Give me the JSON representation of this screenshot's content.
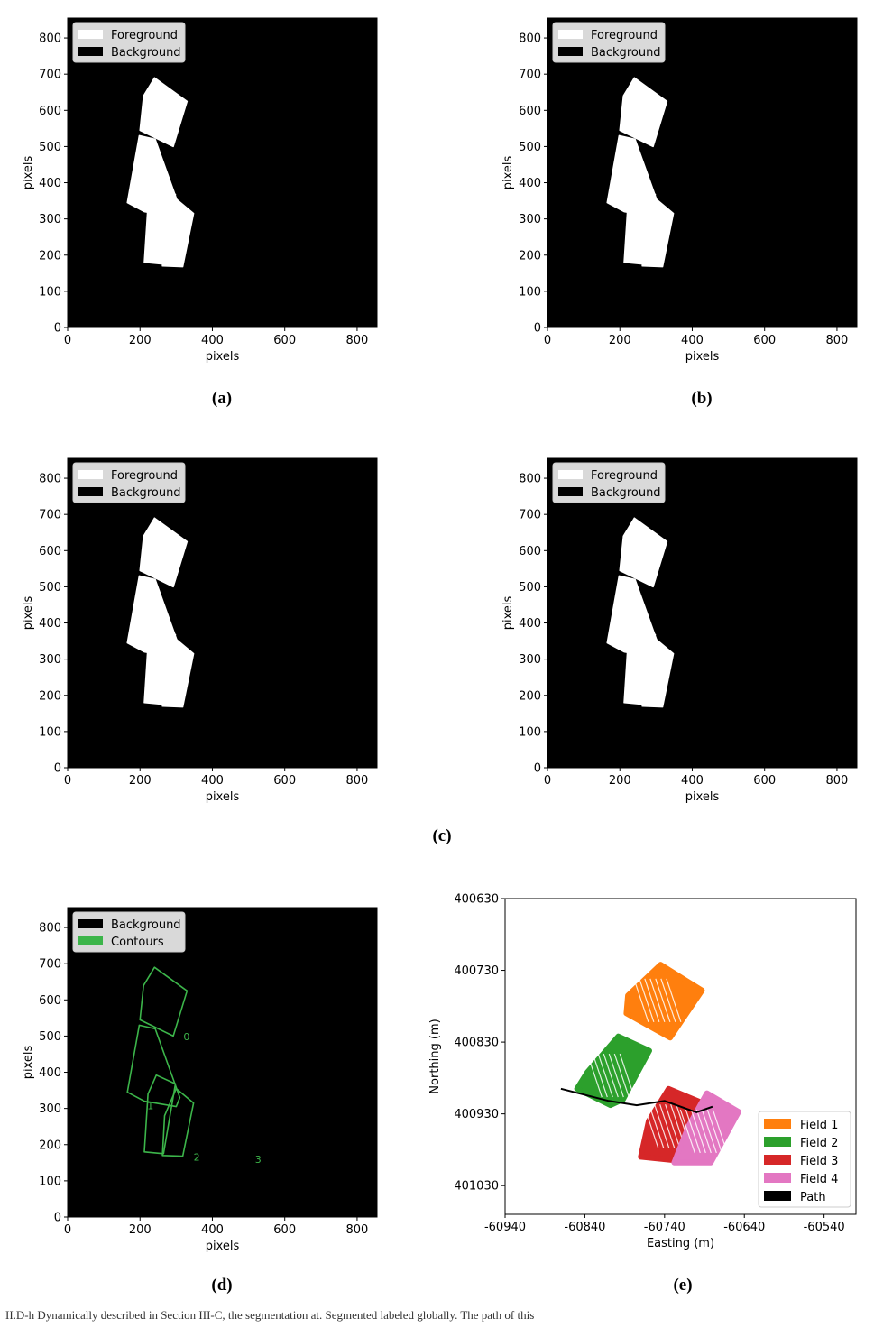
{
  "figure": {
    "captions": {
      "a": "(a)",
      "b": "(b)",
      "c": "(c)",
      "d": "(d)",
      "e": "(e)"
    },
    "bottom_caption": "II.D-h Dynamically described in Section III-C, the segmentation at. Segmented labeled globally. The path of this"
  },
  "chart_data": [
    {
      "id": "a",
      "type": "heatmap",
      "xlabel": "pixels",
      "ylabel": "pixels",
      "xlim": [
        0,
        855
      ],
      "ylim": [
        855,
        0
      ],
      "xticks": [
        0,
        200,
        400,
        600,
        800
      ],
      "yticks": [
        0,
        100,
        200,
        300,
        400,
        500,
        600,
        700,
        800
      ],
      "legend": [
        {
          "label": "Foreground",
          "color": "#ffffff"
        },
        {
          "label": "Background",
          "color": "#000000"
        }
      ],
      "legend_position": "top-left",
      "fields": [
        [
          [
            212,
            320
          ],
          [
            300,
            305
          ],
          [
            310,
            330
          ],
          [
            242,
            520
          ],
          [
            198,
            530
          ],
          [
            165,
            345
          ]
        ],
        [
          [
            200,
            545
          ],
          [
            292,
            500
          ],
          [
            330,
            625
          ],
          [
            240,
            690
          ],
          [
            210,
            640
          ]
        ],
        [
          [
            212,
            180
          ],
          [
            265,
            175
          ],
          [
            298,
            368
          ],
          [
            245,
            392
          ],
          [
            222,
            340
          ]
        ],
        [
          [
            262,
            170
          ],
          [
            318,
            168
          ],
          [
            348,
            315
          ],
          [
            300,
            355
          ],
          [
            268,
            280
          ]
        ]
      ]
    },
    {
      "id": "b",
      "type": "heatmap",
      "xlabel": "pixels",
      "ylabel": "pixels",
      "xlim": [
        0,
        855
      ],
      "ylim": [
        855,
        0
      ],
      "xticks": [
        0,
        200,
        400,
        600,
        800
      ],
      "yticks": [
        0,
        100,
        200,
        300,
        400,
        500,
        600,
        700,
        800
      ],
      "legend": [
        {
          "label": "Foreground",
          "color": "#ffffff"
        },
        {
          "label": "Background",
          "color": "#000000"
        }
      ],
      "legend_position": "top-left",
      "fields": [
        [
          [
            212,
            320
          ],
          [
            300,
            305
          ],
          [
            310,
            330
          ],
          [
            242,
            520
          ],
          [
            198,
            530
          ],
          [
            165,
            345
          ]
        ],
        [
          [
            200,
            545
          ],
          [
            292,
            500
          ],
          [
            330,
            625
          ],
          [
            240,
            690
          ],
          [
            210,
            640
          ]
        ],
        [
          [
            212,
            180
          ],
          [
            265,
            175
          ],
          [
            298,
            368
          ],
          [
            245,
            392
          ],
          [
            222,
            340
          ]
        ],
        [
          [
            262,
            170
          ],
          [
            318,
            168
          ],
          [
            348,
            315
          ],
          [
            300,
            355
          ],
          [
            268,
            280
          ]
        ]
      ]
    },
    {
      "id": "c1",
      "type": "heatmap",
      "xlabel": "pixels",
      "ylabel": "pixels",
      "xlim": [
        0,
        855
      ],
      "ylim": [
        855,
        0
      ],
      "xticks": [
        0,
        200,
        400,
        600,
        800
      ],
      "yticks": [
        0,
        100,
        200,
        300,
        400,
        500,
        600,
        700,
        800
      ],
      "legend": [
        {
          "label": "Foreground",
          "color": "#ffffff"
        },
        {
          "label": "Background",
          "color": "#000000"
        }
      ],
      "legend_position": "top-left",
      "fields": [
        [
          [
            212,
            320
          ],
          [
            300,
            305
          ],
          [
            310,
            330
          ],
          [
            242,
            520
          ],
          [
            198,
            530
          ],
          [
            165,
            345
          ]
        ],
        [
          [
            200,
            545
          ],
          [
            292,
            500
          ],
          [
            330,
            625
          ],
          [
            240,
            690
          ],
          [
            210,
            640
          ]
        ],
        [
          [
            212,
            180
          ],
          [
            265,
            175
          ],
          [
            298,
            368
          ],
          [
            245,
            392
          ],
          [
            222,
            340
          ]
        ],
        [
          [
            262,
            170
          ],
          [
            318,
            168
          ],
          [
            348,
            315
          ],
          [
            300,
            355
          ],
          [
            268,
            280
          ]
        ]
      ]
    },
    {
      "id": "c2",
      "type": "heatmap",
      "xlabel": "pixels",
      "ylabel": "pixels",
      "xlim": [
        0,
        855
      ],
      "ylim": [
        855,
        0
      ],
      "xticks": [
        0,
        200,
        400,
        600,
        800
      ],
      "yticks": [
        0,
        100,
        200,
        300,
        400,
        500,
        600,
        700,
        800
      ],
      "legend": [
        {
          "label": "Foreground",
          "color": "#ffffff"
        },
        {
          "label": "Background",
          "color": "#000000"
        }
      ],
      "legend_position": "top-left",
      "fields": [
        [
          [
            212,
            320
          ],
          [
            300,
            305
          ],
          [
            310,
            330
          ],
          [
            242,
            520
          ],
          [
            198,
            530
          ],
          [
            165,
            345
          ]
        ],
        [
          [
            200,
            545
          ],
          [
            292,
            500
          ],
          [
            330,
            625
          ],
          [
            240,
            690
          ],
          [
            210,
            640
          ]
        ],
        [
          [
            212,
            180
          ],
          [
            265,
            175
          ],
          [
            298,
            368
          ],
          [
            245,
            392
          ],
          [
            222,
            340
          ]
        ],
        [
          [
            262,
            170
          ],
          [
            318,
            168
          ],
          [
            348,
            315
          ],
          [
            300,
            355
          ],
          [
            268,
            280
          ]
        ]
      ]
    },
    {
      "id": "d",
      "type": "heatmap",
      "xlabel": "pixels",
      "ylabel": "pixels",
      "xlim": [
        0,
        855
      ],
      "ylim": [
        855,
        0
      ],
      "xticks": [
        0,
        200,
        400,
        600,
        800
      ],
      "yticks": [
        0,
        100,
        200,
        300,
        400,
        500,
        600,
        700,
        800
      ],
      "legend": [
        {
          "label": "Background",
          "color": "#000000"
        },
        {
          "label": "Contours",
          "color": "#3cb54a"
        }
      ],
      "legend_position": "top-left",
      "contour_color": "#3cb54a",
      "fields": [
        [
          [
            200,
            545
          ],
          [
            292,
            500
          ],
          [
            330,
            625
          ],
          [
            240,
            690
          ],
          [
            210,
            640
          ]
        ],
        [
          [
            212,
            320
          ],
          [
            300,
            305
          ],
          [
            310,
            330
          ],
          [
            242,
            520
          ],
          [
            198,
            530
          ],
          [
            165,
            345
          ]
        ],
        [
          [
            212,
            180
          ],
          [
            265,
            175
          ],
          [
            298,
            368
          ],
          [
            245,
            392
          ],
          [
            222,
            340
          ]
        ],
        [
          [
            262,
            170
          ],
          [
            318,
            168
          ],
          [
            348,
            315
          ],
          [
            300,
            355
          ],
          [
            268,
            280
          ]
        ]
      ],
      "contour_labels": [
        {
          "text": "0",
          "x": 320,
          "y": 488
        },
        {
          "text": "1",
          "x": 220,
          "y": 298
        },
        {
          "text": "2",
          "x": 348,
          "y": 156
        },
        {
          "text": "3",
          "x": 518,
          "y": 150
        }
      ]
    },
    {
      "id": "e",
      "type": "scatter",
      "xlabel": "Easting (m)",
      "ylabel": "Northing (m)",
      "xlim": [
        -60940,
        -60500
      ],
      "ylim": [
        400630,
        401070
      ],
      "xticks": [
        -60940,
        -60840,
        -60740,
        -60640,
        -60540
      ],
      "yticks": [
        400630,
        400730,
        400830,
        400930,
        401030
      ],
      "legend_position": "bottom-right",
      "series": [
        {
          "name": "Field 1",
          "color": "#ff7f0e",
          "polygon": [
            [
              -60788,
              400790
            ],
            [
              -60733,
              400824
            ],
            [
              -60693,
              400758
            ],
            [
              -60745,
              400722
            ],
            [
              -60786,
              400765
            ]
          ]
        },
        {
          "name": "Field 2",
          "color": "#2ca02c",
          "polygon": [
            [
              -60850,
              400895
            ],
            [
              -60808,
              400918
            ],
            [
              -60792,
              400910
            ],
            [
              -60759,
              400842
            ],
            [
              -60798,
              400822
            ],
            [
              -60837,
              400872
            ]
          ]
        },
        {
          "name": "Field 3",
          "color": "#d62728",
          "polygon": [
            [
              -60770,
              400990
            ],
            [
              -60727,
              400995
            ],
            [
              -60692,
              400915
            ],
            [
              -60735,
              400895
            ],
            [
              -60760,
              400940
            ]
          ]
        },
        {
          "name": "Field 4",
          "color": "#e377c2",
          "polygon": [
            [
              -60728,
              400998
            ],
            [
              -60682,
              400998
            ],
            [
              -60647,
              400927
            ],
            [
              -60687,
              400901
            ],
            [
              -60710,
              400947
            ]
          ]
        },
        {
          "name": "Path",
          "color": "#000000",
          "path": [
            [
              -60870,
              400895
            ],
            [
              -60810,
              400912
            ],
            [
              -60775,
              400918
            ],
            [
              -60740,
              400912
            ],
            [
              -60700,
              400928
            ],
            [
              -60680,
              400920
            ]
          ]
        }
      ]
    }
  ]
}
